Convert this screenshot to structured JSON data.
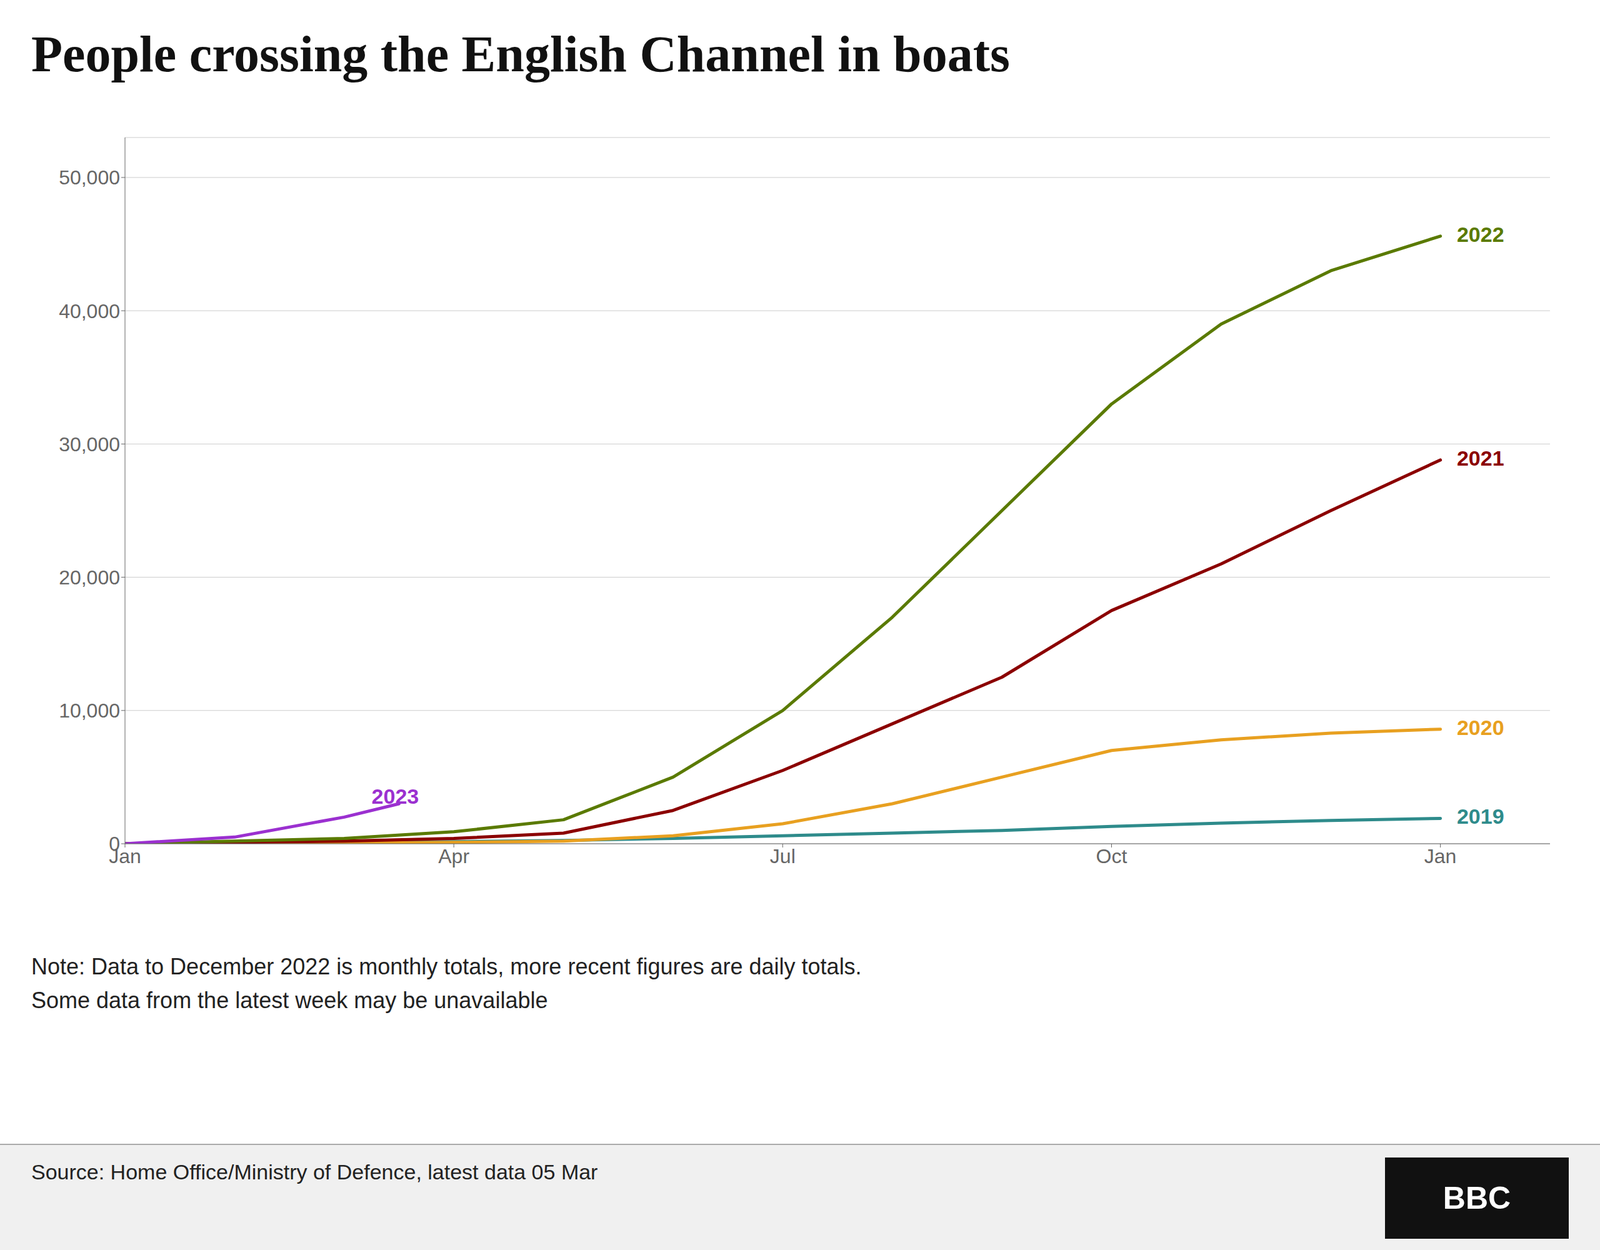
{
  "chart_data": {
    "type": "line",
    "title": "People crossing the English Channel in boats",
    "xlim": [
      0,
      13
    ],
    "xticks": [
      {
        "value": 0,
        "label": "Jan"
      },
      {
        "value": 3,
        "label": "Apr"
      },
      {
        "value": 6,
        "label": "Jul"
      },
      {
        "value": 9,
        "label": "Oct"
      },
      {
        "value": 12,
        "label": "Jan"
      }
    ],
    "ylim": [
      0,
      53000
    ],
    "yticks": [
      0,
      {
        "value": 10000,
        "label": "10,000"
      },
      {
        "value": 20000,
        "label": "20,000"
      },
      {
        "value": 30000,
        "label": "30,000"
      },
      {
        "value": 40000,
        "label": "40,000"
      },
      {
        "value": 50000,
        "label": "50,000"
      }
    ],
    "grid": true,
    "series": [
      {
        "name": "2019",
        "color": "#2e8b8b",
        "x": [
          0,
          1,
          2,
          3,
          4,
          5,
          6,
          7,
          8,
          9,
          10,
          11,
          12
        ],
        "values": [
          0,
          50,
          80,
          150,
          250,
          400,
          600,
          800,
          1000,
          1300,
          1550,
          1750,
          1900
        ]
      },
      {
        "name": "2020",
        "color": "#e8a020",
        "x": [
          0,
          1,
          2,
          3,
          4,
          5,
          6,
          7,
          8,
          9,
          10,
          11,
          12
        ],
        "values": [
          0,
          30,
          50,
          100,
          200,
          600,
          1500,
          3000,
          5000,
          7000,
          7800,
          8300,
          8600
        ]
      },
      {
        "name": "2021",
        "color": "#8b0000",
        "x": [
          0,
          1,
          2,
          3,
          4,
          5,
          6,
          7,
          8,
          9,
          10,
          11,
          12
        ],
        "values": [
          0,
          100,
          200,
          400,
          800,
          2500,
          5500,
          9000,
          12500,
          17500,
          21000,
          25000,
          28800
        ]
      },
      {
        "name": "2022",
        "color": "#5a7a00",
        "x": [
          0,
          1,
          2,
          3,
          4,
          5,
          6,
          7,
          8,
          9,
          10,
          11,
          12
        ],
        "values": [
          0,
          200,
          400,
          900,
          1800,
          5000,
          10000,
          17000,
          25000,
          33000,
          39000,
          43000,
          45600
        ]
      },
      {
        "name": "2023",
        "color": "#9b30d0",
        "x": [
          0,
          1,
          2,
          2.5
        ],
        "values": [
          0,
          500,
          2000,
          3000
        ]
      }
    ],
    "annotations": [
      {
        "text": "2022",
        "x": 12.15,
        "y": 45600,
        "color": "#5a7a00"
      },
      {
        "text": "2021",
        "x": 12.15,
        "y": 28800,
        "color": "#8b0000"
      },
      {
        "text": "2020",
        "x": 12.15,
        "y": 8600,
        "color": "#e8a020"
      },
      {
        "text": "2019",
        "x": 12.15,
        "y": 1900,
        "color": "#2e8b8b"
      },
      {
        "text": "2023",
        "x": 2.25,
        "y": 3400,
        "color": "#9b30d0"
      }
    ],
    "note": "Note: Data to December 2022 is monthly totals, more recent figures are daily totals.\nSome data from the latest week may be unavailable",
    "source": "Source: Home Office/Ministry of Defence, latest data 05 Mar",
    "logo": "BBC"
  }
}
